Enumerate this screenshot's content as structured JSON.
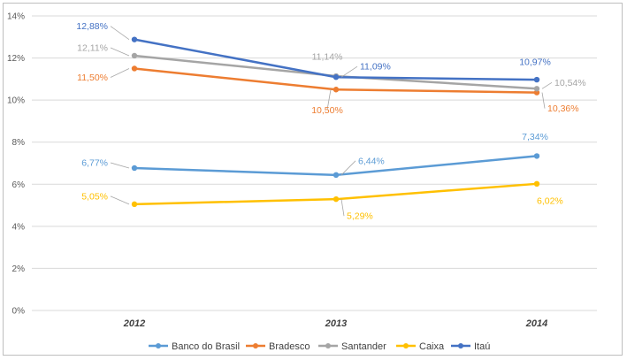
{
  "chart_data": {
    "type": "line",
    "title": "",
    "xlabel": "",
    "ylabel": "",
    "categories": [
      "2012",
      "2013",
      "2014"
    ],
    "ylim": [
      0,
      14
    ],
    "yticks": [
      0,
      2,
      4,
      6,
      8,
      10,
      12,
      14
    ],
    "ytick_labels": [
      "0%",
      "2%",
      "4%",
      "6%",
      "8%",
      "10%",
      "12%",
      "14%"
    ],
    "grid": "horizontal",
    "legend_position": "bottom",
    "series": [
      {
        "name": "Banco do Brasil",
        "color": "#5b9bd5",
        "values": [
          6.77,
          6.44,
          7.34
        ],
        "labels": [
          "6,77%",
          "6,44%",
          "7,34%"
        ]
      },
      {
        "name": "Bradesco",
        "color": "#ed7d31",
        "values": [
          11.5,
          10.5,
          10.36
        ],
        "labels": [
          "11,50%",
          "10,50%",
          "10,36%"
        ]
      },
      {
        "name": "Santander",
        "color": "#a5a5a5",
        "values": [
          12.11,
          11.14,
          10.54
        ],
        "labels": [
          "12,11%",
          "11,14%",
          "10,54%"
        ]
      },
      {
        "name": "Caixa",
        "color": "#ffc000",
        "values": [
          5.05,
          5.29,
          6.02
        ],
        "labels": [
          "5,05%",
          "5,29%",
          "6,02%"
        ]
      },
      {
        "name": "Itaú",
        "color": "#4472c4",
        "values": [
          12.88,
          11.09,
          10.97
        ],
        "labels": [
          "12,88%",
          "11,09%",
          "10,97%"
        ]
      }
    ]
  }
}
